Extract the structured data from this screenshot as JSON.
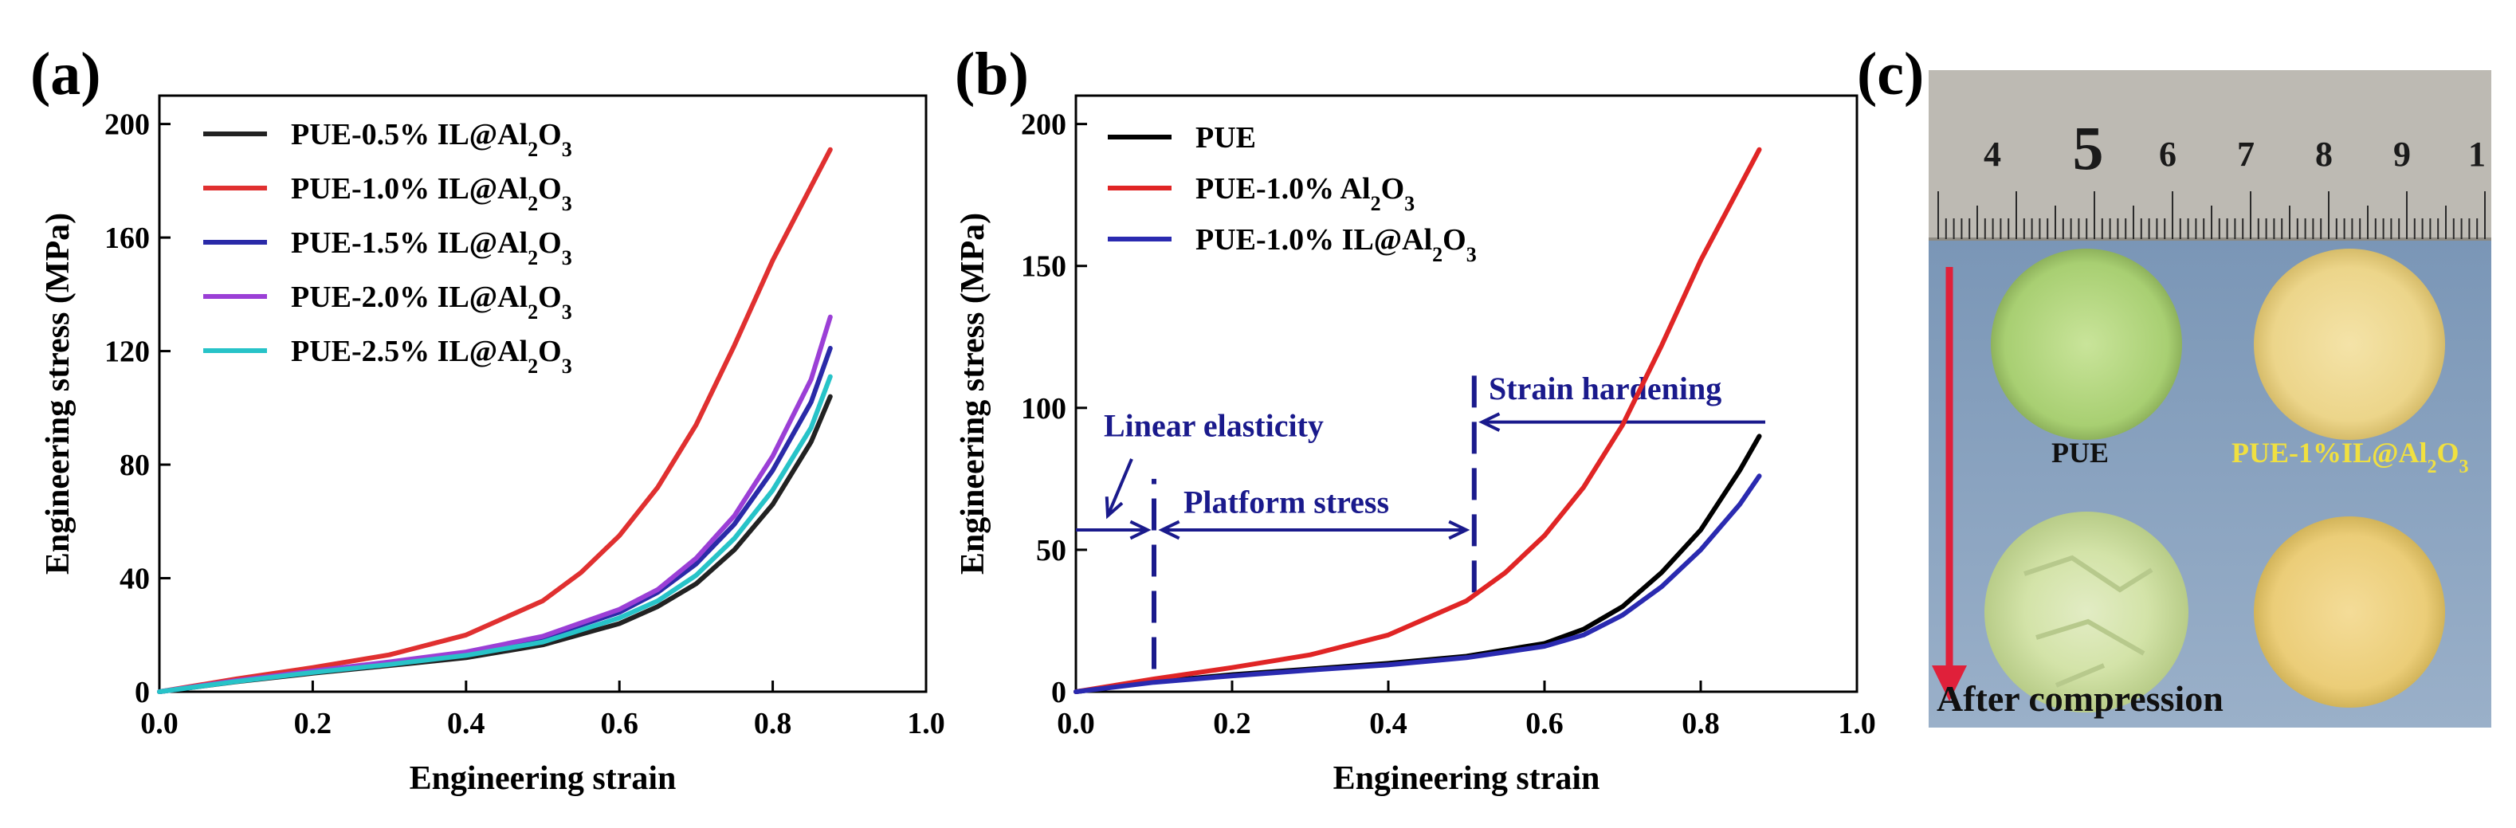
{
  "figure": {
    "panels": {
      "a": {
        "letter": "(a)"
      },
      "b": {
        "letter": "(b)"
      },
      "c": {
        "letter": "(c)"
      }
    }
  },
  "chart_data": [
    {
      "id": "a",
      "type": "line",
      "title": "",
      "xlabel": "Engineering strain",
      "ylabel": "Engineering stress (MPa)",
      "xlim": [
        0.0,
        1.0
      ],
      "ylim": [
        0,
        210
      ],
      "xticks": [
        0.0,
        0.2,
        0.4,
        0.6,
        0.8,
        1.0
      ],
      "xtick_labels": [
        "0.0",
        "0.2",
        "0.4",
        "0.6",
        "0.8",
        "1.0"
      ],
      "yticks": [
        0,
        40,
        80,
        120,
        160,
        200
      ],
      "ytick_labels": [
        "0",
        "40",
        "80",
        "120",
        "160",
        "200"
      ],
      "legend_position": "top-left",
      "series": [
        {
          "name": "PUE-0.5% IL@Al2O3",
          "label_main": "PUE-0.5% IL@Al",
          "label_sub": "2",
          "label_tail": "O",
          "label_sub2": "3",
          "color": "#222222",
          "x": [
            0,
            0.1,
            0.2,
            0.3,
            0.4,
            0.5,
            0.6,
            0.65,
            0.7,
            0.75,
            0.8,
            0.85,
            0.875
          ],
          "y": [
            0,
            3.5,
            6.5,
            9.2,
            12,
            16.5,
            24,
            30,
            38,
            50,
            66,
            88,
            104
          ]
        },
        {
          "name": "PUE-1.0% IL@Al2O3",
          "label_main": "PUE-1.0% IL@Al",
          "label_sub": "2",
          "label_tail": "O",
          "label_sub2": "3",
          "color": "#e03030",
          "x": [
            0,
            0.1,
            0.2,
            0.3,
            0.4,
            0.5,
            0.55,
            0.6,
            0.65,
            0.7,
            0.75,
            0.8,
            0.85,
            0.875
          ],
          "y": [
            0,
            4.5,
            8.5,
            13,
            20,
            32,
            42,
            55,
            72,
            94,
            122,
            152,
            178,
            191
          ]
        },
        {
          "name": "PUE-1.5% IL@Al2O3",
          "label_main": "PUE-1.5% IL@Al",
          "label_sub": "2",
          "label_tail": "O",
          "label_sub2": "3",
          "color": "#2a2aa8",
          "x": [
            0,
            0.1,
            0.2,
            0.3,
            0.4,
            0.5,
            0.6,
            0.65,
            0.7,
            0.75,
            0.8,
            0.85,
            0.875
          ],
          "y": [
            0,
            3.7,
            7,
            10,
            13.5,
            19,
            28,
            35,
            45,
            59,
            78,
            102,
            121
          ]
        },
        {
          "name": "PUE-2.0% IL@Al2O3",
          "label_main": "PUE-2.0% IL@Al",
          "label_sub": "2",
          "label_tail": "O",
          "label_sub2": "3",
          "color": "#9b3fd6",
          "x": [
            0,
            0.1,
            0.2,
            0.3,
            0.4,
            0.5,
            0.6,
            0.65,
            0.7,
            0.75,
            0.8,
            0.85,
            0.875
          ],
          "y": [
            0,
            3.9,
            7.3,
            10.5,
            14,
            19.5,
            29,
            36,
            47,
            62,
            83,
            110,
            132
          ]
        },
        {
          "name": "PUE-2.5% IL@Al2O3",
          "label_main": "PUE-2.5% IL@Al",
          "label_sub": "2",
          "label_tail": "O",
          "label_sub2": "3",
          "color": "#27c3c8",
          "x": [
            0,
            0.1,
            0.2,
            0.3,
            0.4,
            0.5,
            0.6,
            0.65,
            0.7,
            0.75,
            0.8,
            0.85,
            0.875
          ],
          "y": [
            0,
            3.6,
            6.8,
            9.6,
            12.8,
            17.5,
            26,
            32,
            41,
            54,
            71,
            93,
            111
          ]
        }
      ]
    },
    {
      "id": "b",
      "type": "line",
      "title": "",
      "xlabel": "Engineering strain",
      "ylabel": "Engineering stress (MPa)",
      "xlim": [
        0.0,
        1.0
      ],
      "ylim": [
        0,
        210
      ],
      "xticks": [
        0.0,
        0.2,
        0.4,
        0.6,
        0.8,
        1.0
      ],
      "xtick_labels": [
        "0.0",
        "0.2",
        "0.4",
        "0.6",
        "0.8",
        "1.0"
      ],
      "yticks": [
        0,
        50,
        100,
        150,
        200
      ],
      "ytick_labels": [
        "0",
        "50",
        "100",
        "150",
        "200"
      ],
      "legend_position": "top-left",
      "series": [
        {
          "name": "PUE",
          "label_main": "PUE",
          "label_sub": "",
          "label_tail": "",
          "label_sub2": "",
          "color": "#000000",
          "x": [
            0,
            0.1,
            0.2,
            0.3,
            0.4,
            0.5,
            0.6,
            0.65,
            0.7,
            0.75,
            0.8,
            0.85,
            0.875
          ],
          "y": [
            0,
            3.5,
            6,
            8,
            10,
            12.5,
            17,
            22,
            30,
            42,
            57,
            78,
            90
          ]
        },
        {
          "name": "PUE-1.0% Al2O3",
          "label_main": "PUE-1.0% Al",
          "label_sub": "2",
          "label_tail": "O",
          "label_sub2": "3",
          "color": "#e02525",
          "x": [
            0,
            0.1,
            0.2,
            0.3,
            0.4,
            0.5,
            0.55,
            0.6,
            0.65,
            0.7,
            0.75,
            0.8,
            0.85,
            0.875
          ],
          "y": [
            0,
            4.5,
            8.5,
            13,
            20,
            32,
            42,
            55,
            72,
            94,
            122,
            152,
            178,
            191
          ]
        },
        {
          "name": "PUE-1.0% IL@Al2O3",
          "label_main": "PUE-1.0% IL@Al",
          "label_sub": "2",
          "label_tail": "O",
          "label_sub2": "3",
          "color": "#2a2ab0",
          "x": [
            0,
            0.1,
            0.2,
            0.3,
            0.4,
            0.5,
            0.6,
            0.65,
            0.7,
            0.75,
            0.8,
            0.85,
            0.875
          ],
          "y": [
            0,
            3.3,
            5.6,
            7.6,
            9.5,
            12,
            16,
            20,
            27,
            37,
            50,
            66,
            76
          ]
        }
      ],
      "annotations": {
        "linear_elasticity": "Linear elasticity",
        "platform_stress": "Platform stress",
        "strain_hardening": "Strain hardening",
        "dashed_lines_x": [
          0.1,
          0.51
        ],
        "arrow_y": 57,
        "hardening_arrow_y": 95
      }
    }
  ],
  "photo": {
    "ruler_numbers": [
      "4",
      "5",
      "6",
      "7",
      "8",
      "9",
      "1"
    ],
    "label_left": "PUE",
    "label_right_main": "PUE-1%IL@Al",
    "label_right_sub": "2",
    "label_right_tail": "O",
    "label_right_sub2": "3",
    "caption": "After compression",
    "colors": {
      "background": "#7f9ab8",
      "ruler": "#bcb9b2",
      "arrow": "#e0203a",
      "label_right": "#f0e040",
      "caption": "#101010"
    }
  }
}
